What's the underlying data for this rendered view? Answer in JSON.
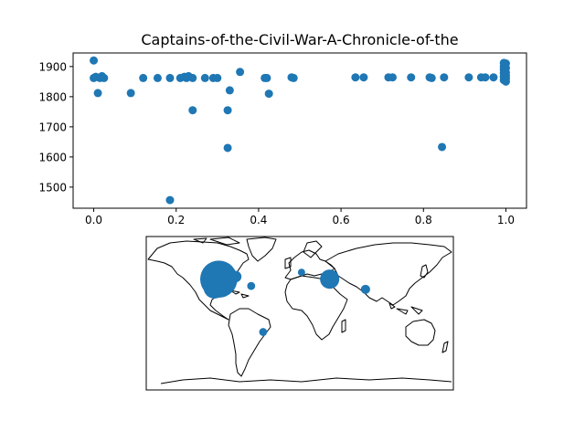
{
  "chart_data": [
    {
      "type": "scatter",
      "title": "Captains-of-the-Civil-War-A-Chronicle-of-the",
      "xlabel": "",
      "ylabel": "",
      "xlim": [
        -0.05,
        1.05
      ],
      "ylim": [
        1430,
        1945
      ],
      "x_ticks": [
        0.0,
        0.2,
        0.4,
        0.6,
        0.8,
        1.0
      ],
      "x_tick_labels": [
        "0.0",
        "0.2",
        "0.4",
        "0.6",
        "0.8",
        "1.0"
      ],
      "y_ticks": [
        1500,
        1600,
        1700,
        1800,
        1900
      ],
      "y_tick_labels": [
        "1500",
        "1600",
        "1700",
        "1800",
        "1900"
      ],
      "grid": false,
      "color": "#1f77b4",
      "points": [
        {
          "x": 0.0,
          "y": 1920
        },
        {
          "x": 0.0,
          "y": 1862
        },
        {
          "x": 0.005,
          "y": 1866
        },
        {
          "x": 0.01,
          "y": 1812
        },
        {
          "x": 0.015,
          "y": 1862
        },
        {
          "x": 0.02,
          "y": 1868
        },
        {
          "x": 0.025,
          "y": 1862
        },
        {
          "x": 0.09,
          "y": 1812
        },
        {
          "x": 0.12,
          "y": 1862
        },
        {
          "x": 0.155,
          "y": 1862
        },
        {
          "x": 0.185,
          "y": 1862
        },
        {
          "x": 0.185,
          "y": 1457
        },
        {
          "x": 0.21,
          "y": 1862
        },
        {
          "x": 0.22,
          "y": 1866
        },
        {
          "x": 0.225,
          "y": 1862
        },
        {
          "x": 0.23,
          "y": 1868
        },
        {
          "x": 0.24,
          "y": 1862
        },
        {
          "x": 0.24,
          "y": 1755
        },
        {
          "x": 0.27,
          "y": 1862
        },
        {
          "x": 0.29,
          "y": 1862
        },
        {
          "x": 0.3,
          "y": 1862
        },
        {
          "x": 0.325,
          "y": 1755
        },
        {
          "x": 0.325,
          "y": 1630
        },
        {
          "x": 0.33,
          "y": 1821
        },
        {
          "x": 0.355,
          "y": 1882
        },
        {
          "x": 0.415,
          "y": 1862
        },
        {
          "x": 0.42,
          "y": 1862
        },
        {
          "x": 0.425,
          "y": 1810
        },
        {
          "x": 0.48,
          "y": 1864
        },
        {
          "x": 0.485,
          "y": 1862
        },
        {
          "x": 0.635,
          "y": 1864
        },
        {
          "x": 0.655,
          "y": 1864
        },
        {
          "x": 0.715,
          "y": 1864
        },
        {
          "x": 0.725,
          "y": 1864
        },
        {
          "x": 0.77,
          "y": 1864
        },
        {
          "x": 0.815,
          "y": 1864
        },
        {
          "x": 0.82,
          "y": 1862
        },
        {
          "x": 0.845,
          "y": 1633
        },
        {
          "x": 0.85,
          "y": 1864
        },
        {
          "x": 0.91,
          "y": 1864
        },
        {
          "x": 0.94,
          "y": 1864
        },
        {
          "x": 0.95,
          "y": 1864
        },
        {
          "x": 0.97,
          "y": 1864
        },
        {
          "x": 0.995,
          "y": 1912
        },
        {
          "x": 0.995,
          "y": 1900
        },
        {
          "x": 0.995,
          "y": 1890
        },
        {
          "x": 0.995,
          "y": 1878
        },
        {
          "x": 0.995,
          "y": 1866
        },
        {
          "x": 0.995,
          "y": 1855
        },
        {
          "x": 1.0,
          "y": 1910
        },
        {
          "x": 1.0,
          "y": 1895
        },
        {
          "x": 1.0,
          "y": 1880
        },
        {
          "x": 1.0,
          "y": 1870
        },
        {
          "x": 1.0,
          "y": 1860
        },
        {
          "x": 1.0,
          "y": 1850
        }
      ]
    },
    {
      "type": "scatter",
      "subtype": "geographic bubble map",
      "projection": "equirectangular",
      "lon_range": [
        -180,
        180
      ],
      "lat_range": [
        -90,
        90
      ],
      "color": "#1f77b4",
      "points": [
        {
          "lon": -95,
          "lat": 40,
          "size": 1300
        },
        {
          "lon": -100,
          "lat": 30,
          "size": 450
        },
        {
          "lon": -75,
          "lat": 43,
          "size": 120
        },
        {
          "lon": -57,
          "lat": 32,
          "size": 60
        },
        {
          "lon": -43,
          "lat": -22,
          "size": 60
        },
        {
          "lon": 2,
          "lat": 48,
          "size": 50
        },
        {
          "lon": 35,
          "lat": 40,
          "size": 350
        },
        {
          "lon": 77,
          "lat": 28,
          "size": 80
        }
      ]
    }
  ]
}
